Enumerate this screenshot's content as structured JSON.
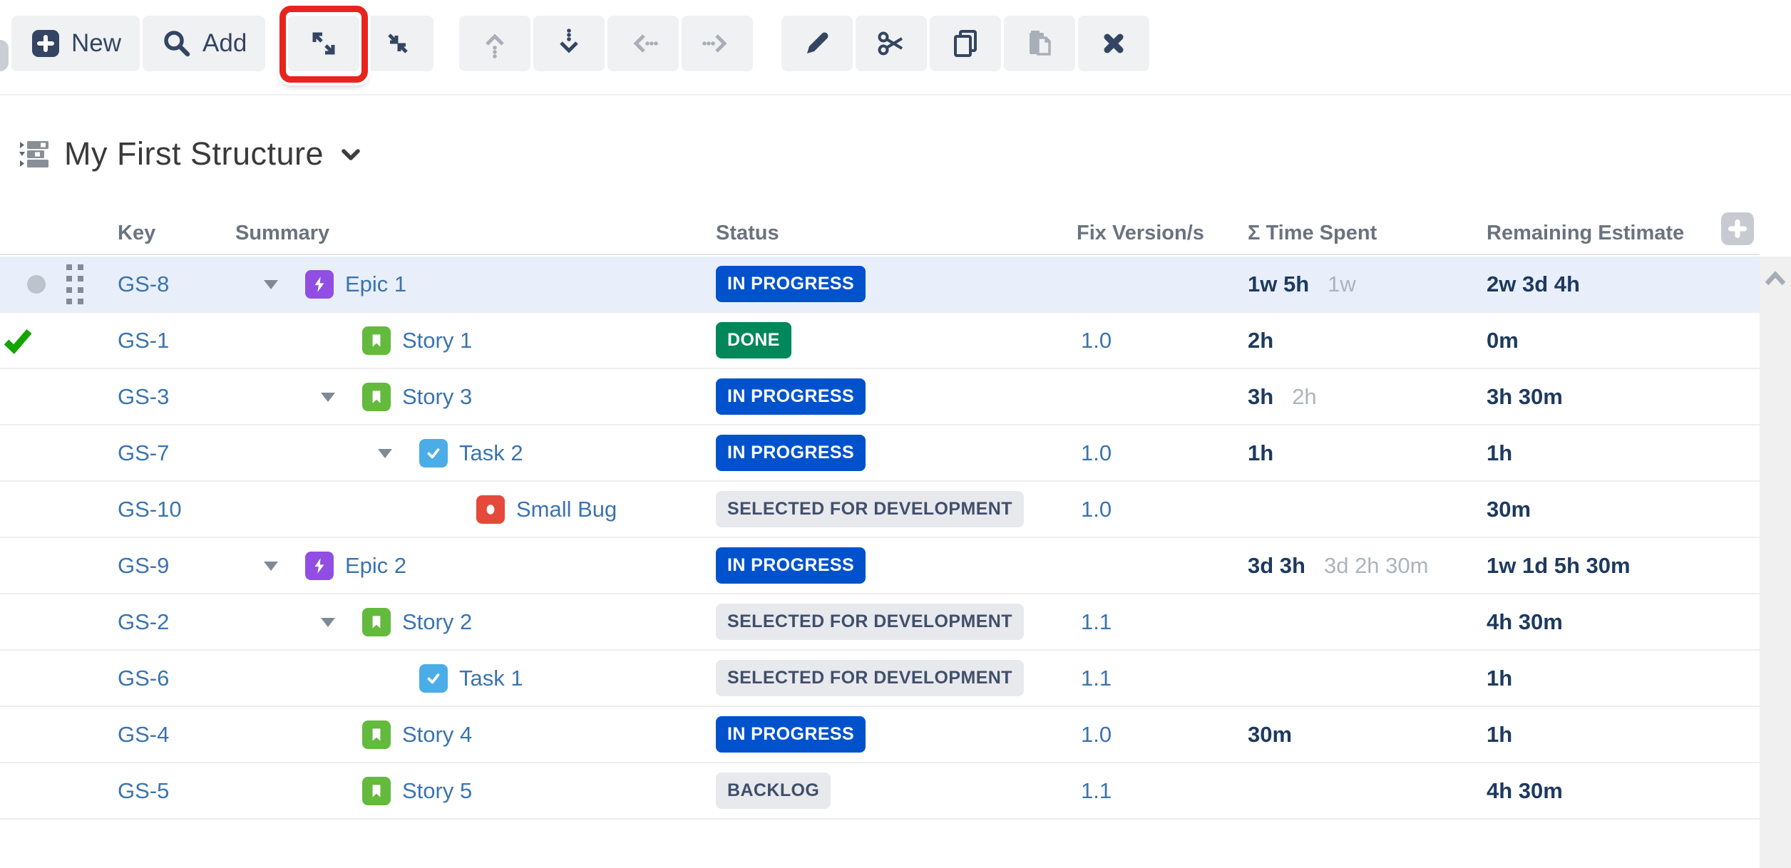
{
  "toolbar": {
    "groups": [
      {
        "buttons": [
          {
            "id": "new",
            "label": "New",
            "enabled": true
          },
          {
            "id": "add",
            "label": "Add",
            "enabled": true
          }
        ]
      },
      {
        "buttons": [
          {
            "id": "expand-all",
            "enabled": true,
            "annotated": true
          },
          {
            "id": "collapse-all",
            "enabled": true
          }
        ]
      },
      {
        "buttons": [
          {
            "id": "move-up",
            "enabled": false
          },
          {
            "id": "move-down",
            "enabled": true
          },
          {
            "id": "move-left",
            "enabled": false
          },
          {
            "id": "move-right",
            "enabled": false
          }
        ]
      },
      {
        "buttons": [
          {
            "id": "edit",
            "enabled": true
          },
          {
            "id": "cut",
            "enabled": true
          },
          {
            "id": "copy",
            "enabled": true
          },
          {
            "id": "paste",
            "enabled": false
          },
          {
            "id": "delete",
            "enabled": true
          }
        ]
      }
    ],
    "annotation_color": "#E8241E"
  },
  "structure": {
    "title": "My First Structure"
  },
  "table": {
    "columns": [
      {
        "id": "key",
        "label": "Key"
      },
      {
        "id": "summary",
        "label": "Summary"
      },
      {
        "id": "status",
        "label": "Status"
      },
      {
        "id": "fix",
        "label": "Fix Version/s"
      },
      {
        "id": "spent",
        "label": "Σ Time Spent"
      },
      {
        "id": "remaining",
        "label": "Remaining Estimate"
      }
    ],
    "rows": [
      {
        "key": "GS-8",
        "summary": "Epic 1",
        "type": "epic",
        "level": 0,
        "expander": true,
        "status": "IN PROGRESS",
        "status_color": "blue",
        "fix": "",
        "spent": "1w 5h",
        "spent_agg": "1w",
        "remaining": "2w 3d 4h",
        "selected": true,
        "resolved": false,
        "gutter": "dot-drag"
      },
      {
        "key": "GS-1",
        "summary": "Story 1",
        "type": "story",
        "level": 1,
        "expander": false,
        "status": "DONE",
        "status_color": "green",
        "fix": "1.0",
        "spent": "2h",
        "spent_agg": "",
        "remaining": "0m",
        "selected": false,
        "resolved": true,
        "gutter": ""
      },
      {
        "key": "GS-3",
        "summary": "Story 3",
        "type": "story",
        "level": 1,
        "expander": true,
        "status": "IN PROGRESS",
        "status_color": "blue",
        "fix": "",
        "spent": "3h",
        "spent_agg": "2h",
        "remaining": "3h 30m",
        "selected": false,
        "resolved": false,
        "gutter": ""
      },
      {
        "key": "GS-7",
        "summary": "Task 2",
        "type": "task",
        "level": 2,
        "expander": true,
        "status": "IN PROGRESS",
        "status_color": "blue",
        "fix": "1.0",
        "spent": "1h",
        "spent_agg": "",
        "remaining": "1h",
        "selected": false,
        "resolved": false,
        "gutter": ""
      },
      {
        "key": "GS-10",
        "summary": "Small Bug",
        "type": "bug",
        "level": 3,
        "expander": false,
        "status": "SELECTED FOR DEVELOPMENT",
        "status_color": "gray",
        "fix": "1.0",
        "spent": "",
        "spent_agg": "",
        "remaining": "30m",
        "selected": false,
        "resolved": false,
        "gutter": ""
      },
      {
        "key": "GS-9",
        "summary": "Epic 2",
        "type": "epic",
        "level": 0,
        "expander": true,
        "status": "IN PROGRESS",
        "status_color": "blue",
        "fix": "",
        "spent": "3d 3h",
        "spent_agg": "3d 2h 30m",
        "remaining": "1w 1d 5h 30m",
        "selected": false,
        "resolved": false,
        "gutter": ""
      },
      {
        "key": "GS-2",
        "summary": "Story 2",
        "type": "story",
        "level": 1,
        "expander": true,
        "status": "SELECTED FOR DEVELOPMENT",
        "status_color": "gray",
        "fix": "1.1",
        "spent": "",
        "spent_agg": "",
        "remaining": "4h 30m",
        "selected": false,
        "resolved": false,
        "gutter": ""
      },
      {
        "key": "GS-6",
        "summary": "Task 1",
        "type": "task",
        "level": 2,
        "expander": false,
        "status": "SELECTED FOR DEVELOPMENT",
        "status_color": "gray",
        "fix": "1.1",
        "spent": "",
        "spent_agg": "",
        "remaining": "1h",
        "selected": false,
        "resolved": false,
        "gutter": ""
      },
      {
        "key": "GS-4",
        "summary": "Story 4",
        "type": "story",
        "level": 1,
        "expander": false,
        "status": "IN PROGRESS",
        "status_color": "blue",
        "fix": "1.0",
        "spent": "30m",
        "spent_agg": "",
        "remaining": "1h",
        "selected": false,
        "resolved": false,
        "gutter": ""
      },
      {
        "key": "GS-5",
        "summary": "Story 5",
        "type": "story",
        "level": 1,
        "expander": false,
        "status": "BACKLOG",
        "status_color": "gray",
        "fix": "1.1",
        "spent": "",
        "spent_agg": "",
        "remaining": "4h 30m",
        "selected": false,
        "resolved": false,
        "gutter": ""
      }
    ]
  },
  "colors": {
    "selected_row_bg": "#E8EFFB",
    "link": "#3B73AF",
    "value_text": "#1D3A5F",
    "aggregate_text": "#ACB3BE",
    "header_text": "#6A737F",
    "status": {
      "blue": {
        "bg": "#0052CC",
        "fg": "#FFFFFF"
      },
      "green": {
        "bg": "#00875A",
        "fg": "#FFFFFF"
      },
      "gray": {
        "bg": "#E8E9ED",
        "fg": "#404F6B"
      }
    },
    "issue_type": {
      "epic": "#904EE2",
      "story": "#63BA3C",
      "task": "#4BADE8",
      "bug": "#E5493A"
    },
    "resolved_check": "#14A400",
    "toolbar_icon": "#344563",
    "toolbar_icon_disabled": "#A9AFB7"
  }
}
